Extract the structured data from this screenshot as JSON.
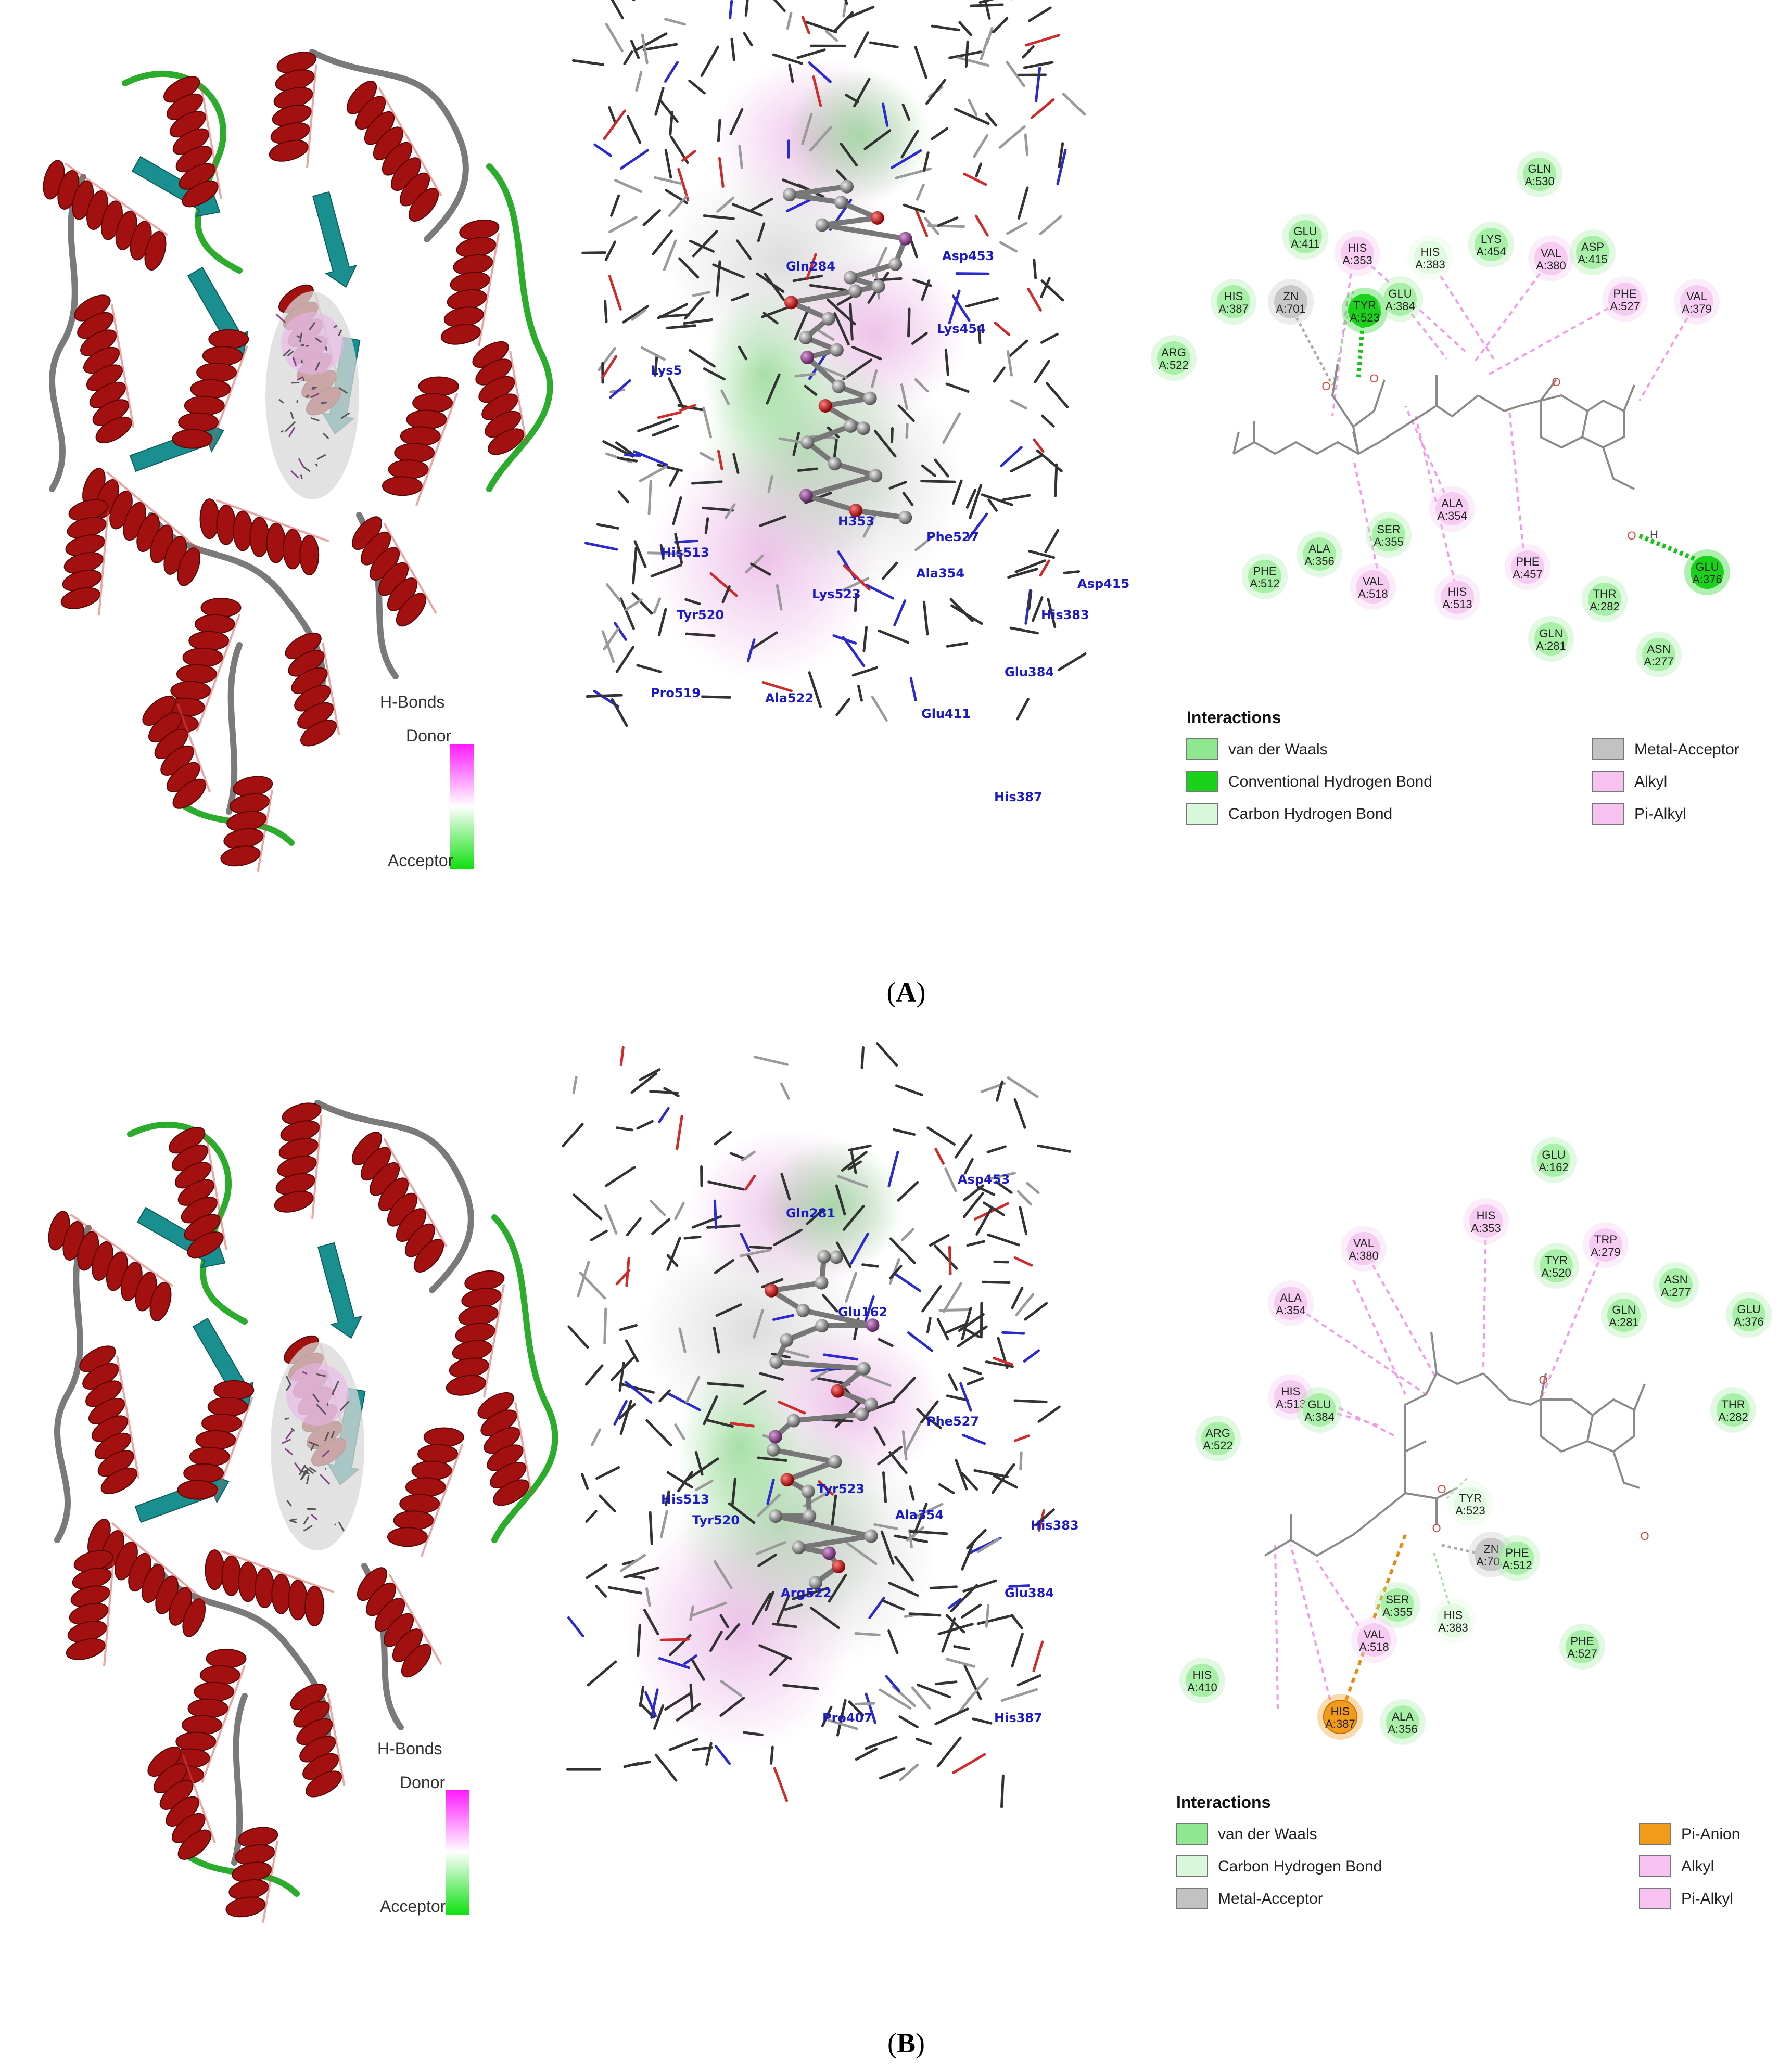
{
  "panels": [
    {
      "id": "A",
      "caption_letter": "A",
      "colorbar": {
        "title": "H-Bonds",
        "top_label": "Donor",
        "bottom_label": "Acceptor"
      },
      "labels_3d": [
        "Gln284",
        "Asp453",
        "Lys454",
        "Lys5",
        "His513",
        "Phe527",
        "Ala354",
        "Lys523",
        "Tyr520",
        "Asp415",
        "His383",
        "Glu384",
        "Pro519",
        "Ala522",
        "Glu411",
        "His387",
        "H353"
      ],
      "residues": [
        {
          "name": "GLN",
          "id": "A:530",
          "type": "vdw"
        },
        {
          "name": "GLU",
          "id": "A:411",
          "type": "vdw"
        },
        {
          "name": "HIS",
          "id": "A:353",
          "type": "alkyl"
        },
        {
          "name": "HIS",
          "id": "A:383",
          "type": "chb"
        },
        {
          "name": "LYS",
          "id": "A:454",
          "type": "vdw"
        },
        {
          "name": "VAL",
          "id": "A:380",
          "type": "alkyl"
        },
        {
          "name": "ASP",
          "id": "A:415",
          "type": "vdw"
        },
        {
          "name": "HIS",
          "id": "A:387",
          "type": "vdw"
        },
        {
          "name": "ZN",
          "id": "A:701",
          "type": "metal"
        },
        {
          "name": "TYR",
          "id": "A:523",
          "type": "hbond"
        },
        {
          "name": "GLU",
          "id": "A:384",
          "type": "vdw"
        },
        {
          "name": "PHE",
          "id": "A:527",
          "type": "alkyl"
        },
        {
          "name": "VAL",
          "id": "A:379",
          "type": "alkyl"
        },
        {
          "name": "ARG",
          "id": "A:522",
          "type": "vdw"
        },
        {
          "name": "ALA",
          "id": "A:354",
          "type": "alkyl"
        },
        {
          "name": "SER",
          "id": "A:355",
          "type": "vdw"
        },
        {
          "name": "ALA",
          "id": "A:356",
          "type": "vdw"
        },
        {
          "name": "PHE",
          "id": "A:512",
          "type": "vdw"
        },
        {
          "name": "VAL",
          "id": "A:518",
          "type": "alkyl"
        },
        {
          "name": "HIS",
          "id": "A:513",
          "type": "alkyl"
        },
        {
          "name": "PHE",
          "id": "A:457",
          "type": "alkyl"
        },
        {
          "name": "THR",
          "id": "A:282",
          "type": "vdw"
        },
        {
          "name": "GLN",
          "id": "A:281",
          "type": "vdw"
        },
        {
          "name": "ASN",
          "id": "A:277",
          "type": "vdw"
        },
        {
          "name": "GLU",
          "id": "A:376",
          "type": "hbond"
        }
      ],
      "ligand_atoms": [
        "O",
        "O",
        "O",
        "O",
        "H"
      ],
      "legend": {
        "title": "Interactions",
        "items": [
          {
            "label": "van der Waals",
            "color": "#8fe88f"
          },
          {
            "label": "Conventional Hydrogen Bond",
            "color": "#19d219"
          },
          {
            "label": "Carbon Hydrogen Bond",
            "color": "#d9f7d9"
          },
          {
            "label": "Metal-Acceptor",
            "color": "#c2c2c2"
          },
          {
            "label": "Alkyl",
            "color": "#f7c2f2"
          },
          {
            "label": "Pi-Alkyl",
            "color": "#f7c2f2"
          }
        ]
      }
    },
    {
      "id": "B",
      "caption_letter": "B",
      "colorbar": {
        "title": "H-Bonds",
        "top_label": "Donor",
        "bottom_label": "Acceptor"
      },
      "labels_3d": [
        "Asp453",
        "Gln281",
        "Glu162",
        "Phe527",
        "His513",
        "Tyr520",
        "Tyr523",
        "Ala354",
        "His383",
        "Glu384",
        "Arg522",
        "Pro407",
        "His387"
      ],
      "residues": [
        {
          "name": "GLU",
          "id": "A:162",
          "type": "vdw"
        },
        {
          "name": "HIS",
          "id": "A:353",
          "type": "alkyl"
        },
        {
          "name": "VAL",
          "id": "A:380",
          "type": "alkyl"
        },
        {
          "name": "TRP",
          "id": "A:279",
          "type": "alkyl"
        },
        {
          "name": "TYR",
          "id": "A:520",
          "type": "vdw"
        },
        {
          "name": "ASN",
          "id": "A:277",
          "type": "vdw"
        },
        {
          "name": "ALA",
          "id": "A:354",
          "type": "alkyl"
        },
        {
          "name": "GLN",
          "id": "A:281",
          "type": "vdw"
        },
        {
          "name": "GLU",
          "id": "A:376",
          "type": "vdw"
        },
        {
          "name": "HIS",
          "id": "A:513",
          "type": "alkyl"
        },
        {
          "name": "GLU",
          "id": "A:384",
          "type": "vdw"
        },
        {
          "name": "THR",
          "id": "A:282",
          "type": "vdw"
        },
        {
          "name": "ARG",
          "id": "A:522",
          "type": "vdw"
        },
        {
          "name": "TYR",
          "id": "A:523",
          "type": "chb"
        },
        {
          "name": "ZN",
          "id": "A:701",
          "type": "metal"
        },
        {
          "name": "PHE",
          "id": "A:512",
          "type": "vdw"
        },
        {
          "name": "SER",
          "id": "A:355",
          "type": "vdw"
        },
        {
          "name": "HIS",
          "id": "A:383",
          "type": "chb"
        },
        {
          "name": "VAL",
          "id": "A:518",
          "type": "alkyl"
        },
        {
          "name": "PHE",
          "id": "A:527",
          "type": "vdw"
        },
        {
          "name": "HIS",
          "id": "A:410",
          "type": "vdw"
        },
        {
          "name": "HIS",
          "id": "A:387",
          "type": "pianion"
        },
        {
          "name": "ALA",
          "id": "A:356",
          "type": "vdw"
        }
      ],
      "ligand_atoms": [
        "O",
        "O",
        "O",
        "O"
      ],
      "legend": {
        "title": "Interactions",
        "items": [
          {
            "label": "van der Waals",
            "color": "#8fe88f"
          },
          {
            "label": "Carbon Hydrogen Bond",
            "color": "#d9f7d9"
          },
          {
            "label": "Metal-Acceptor",
            "color": "#c2c2c2"
          },
          {
            "label": "Pi-Anion",
            "color": "#f29a1a"
          },
          {
            "label": "Alkyl",
            "color": "#f7c2f2"
          },
          {
            "label": "Pi-Alkyl",
            "color": "#f7c2f2"
          }
        ]
      }
    }
  ],
  "colors": {
    "helix": "#a31010",
    "sheet": "#1a8f8f",
    "turn": "#2cac2c",
    "coil": "#7a7a7a",
    "vdw": "#a8efa8",
    "hbond": "#19d219",
    "chb": "#e2f9e2",
    "metal": "#c8c8c8",
    "alkyl": "#f7ccf2",
    "pianion": "#f29a1a",
    "ligand": "#8a8a8a",
    "oxygen": "#e23c3c",
    "pink_line": "#f59ae8",
    "green_line": "#19c219",
    "orange_line": "#e88a10"
  }
}
